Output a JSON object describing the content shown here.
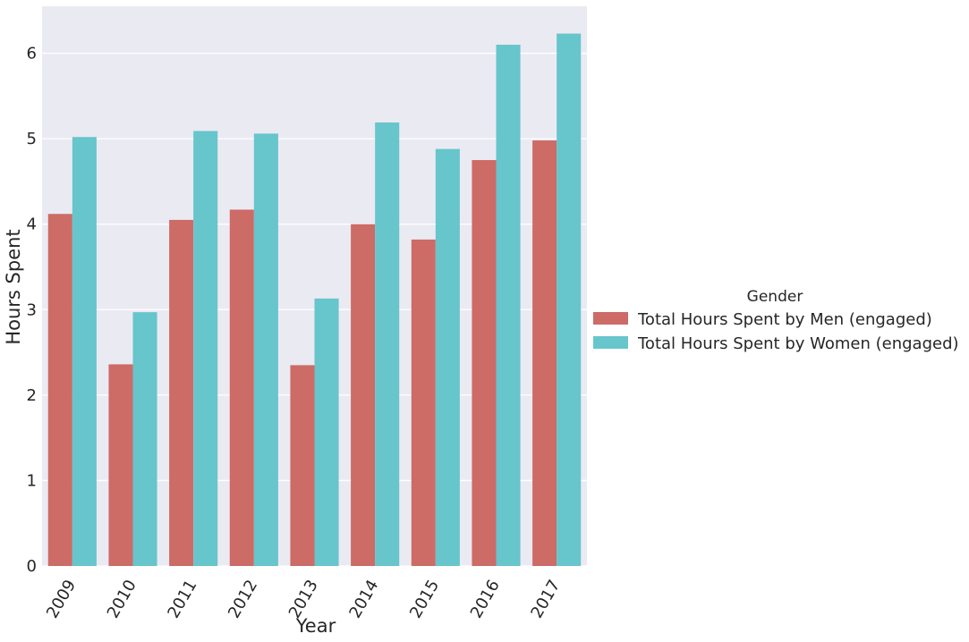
{
  "chart_data": {
    "type": "bar",
    "categories": [
      "2009",
      "2010",
      "2011",
      "2012",
      "2013",
      "2014",
      "2015",
      "2016",
      "2017"
    ],
    "series": [
      {
        "name": "Total Hours Spent by Men (engaged)",
        "color": "#cd6b67",
        "values": [
          4.12,
          2.36,
          4.05,
          4.17,
          2.35,
          4.0,
          3.82,
          4.75,
          4.98
        ]
      },
      {
        "name": "Total Hours Spent by Women (engaged)",
        "color": "#67c5cc",
        "values": [
          5.02,
          2.97,
          5.09,
          5.06,
          3.13,
          5.19,
          4.88,
          6.1,
          6.23
        ]
      }
    ],
    "xlabel": "Year",
    "ylabel": "Hours Spent",
    "ylim": [
      0,
      6.55
    ],
    "yticks": [
      0,
      1,
      2,
      3,
      4,
      5,
      6
    ],
    "grid": true,
    "legend": {
      "title": "Gender",
      "placement": "right"
    },
    "colors": {
      "plot_background": "#eaeaf2",
      "grid": "#ffffff"
    }
  }
}
